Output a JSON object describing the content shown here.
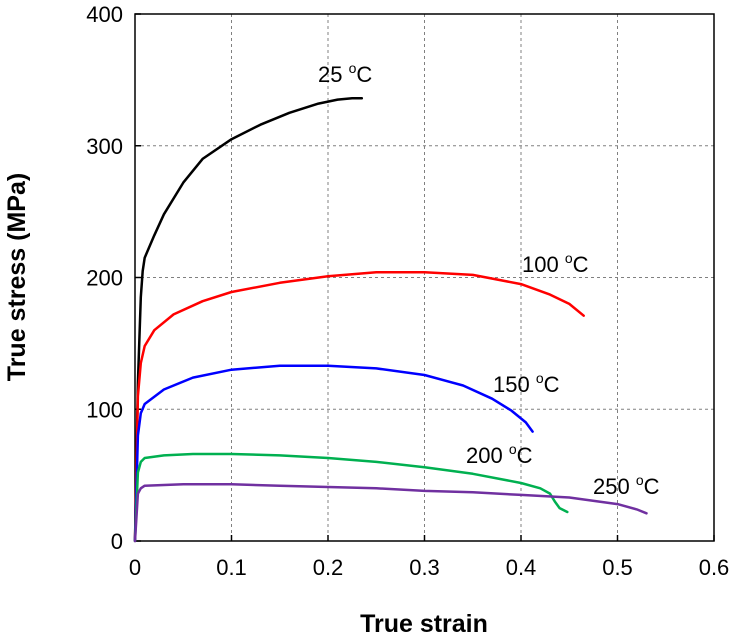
{
  "chart_data": {
    "type": "line",
    "title": "",
    "xlabel": "True strain",
    "ylabel": "True stress (MPa)",
    "xlim": [
      0,
      0.6
    ],
    "ylim": [
      0,
      400
    ],
    "xticks": [
      "0",
      "0.1",
      "0.2",
      "0.3",
      "0.4",
      "0.5",
      "0.6"
    ],
    "yticks": [
      "0",
      "100",
      "200",
      "300",
      "400"
    ],
    "grid": true,
    "series": [
      {
        "name": "25 °C",
        "label_number": "25",
        "label_sup": "o",
        "label_unit": "C",
        "color": "#000000",
        "x": [
          0,
          0.003,
          0.006,
          0.008,
          0.01,
          0.02,
          0.03,
          0.05,
          0.07,
          0.1,
          0.13,
          0.16,
          0.19,
          0.21,
          0.225,
          0.235
        ],
        "y": [
          0,
          120,
          185,
          205,
          215,
          232,
          248,
          272,
          290,
          305,
          316,
          325,
          332,
          335,
          336,
          336
        ]
      },
      {
        "name": "100 °C",
        "label_number": "100",
        "label_sup": "o",
        "label_unit": "C",
        "color": "#ff0000",
        "x": [
          0,
          0.003,
          0.006,
          0.01,
          0.02,
          0.04,
          0.07,
          0.1,
          0.15,
          0.2,
          0.25,
          0.3,
          0.35,
          0.4,
          0.43,
          0.45,
          0.465
        ],
        "y": [
          0,
          110,
          135,
          148,
          160,
          172,
          182,
          189,
          196,
          201,
          204,
          204,
          202,
          195,
          187,
          180,
          171
        ]
      },
      {
        "name": "150 °C",
        "label_number": "150",
        "label_sup": "o",
        "label_unit": "C",
        "color": "#0000ff",
        "x": [
          0,
          0.003,
          0.006,
          0.01,
          0.03,
          0.06,
          0.1,
          0.15,
          0.2,
          0.25,
          0.3,
          0.34,
          0.37,
          0.39,
          0.405,
          0.412
        ],
        "y": [
          0,
          80,
          97,
          104,
          115,
          124,
          130,
          133,
          133,
          131,
          126,
          118,
          108,
          99,
          90,
          83
        ]
      },
      {
        "name": "200 °C",
        "label_number": "200",
        "label_sup": "o",
        "label_unit": "C",
        "color": "#00b050",
        "x": [
          0,
          0.003,
          0.006,
          0.01,
          0.03,
          0.06,
          0.1,
          0.15,
          0.2,
          0.25,
          0.3,
          0.35,
          0.4,
          0.42,
          0.43,
          0.435,
          0.44,
          0.448
        ],
        "y": [
          0,
          52,
          60,
          63,
          65,
          66,
          66,
          65,
          63,
          60,
          56,
          51,
          44,
          40,
          36,
          30,
          25,
          22
        ]
      },
      {
        "name": "250 °C",
        "label_number": "250",
        "label_sup": "o",
        "label_unit": "C",
        "color": "#7030a0",
        "x": [
          0,
          0.003,
          0.006,
          0.01,
          0.05,
          0.1,
          0.15,
          0.2,
          0.25,
          0.3,
          0.35,
          0.4,
          0.45,
          0.5,
          0.52,
          0.53
        ],
        "y": [
          0,
          36,
          40,
          42,
          43,
          43,
          42,
          41,
          40,
          38,
          37,
          35,
          33,
          28,
          24,
          21
        ]
      }
    ]
  }
}
